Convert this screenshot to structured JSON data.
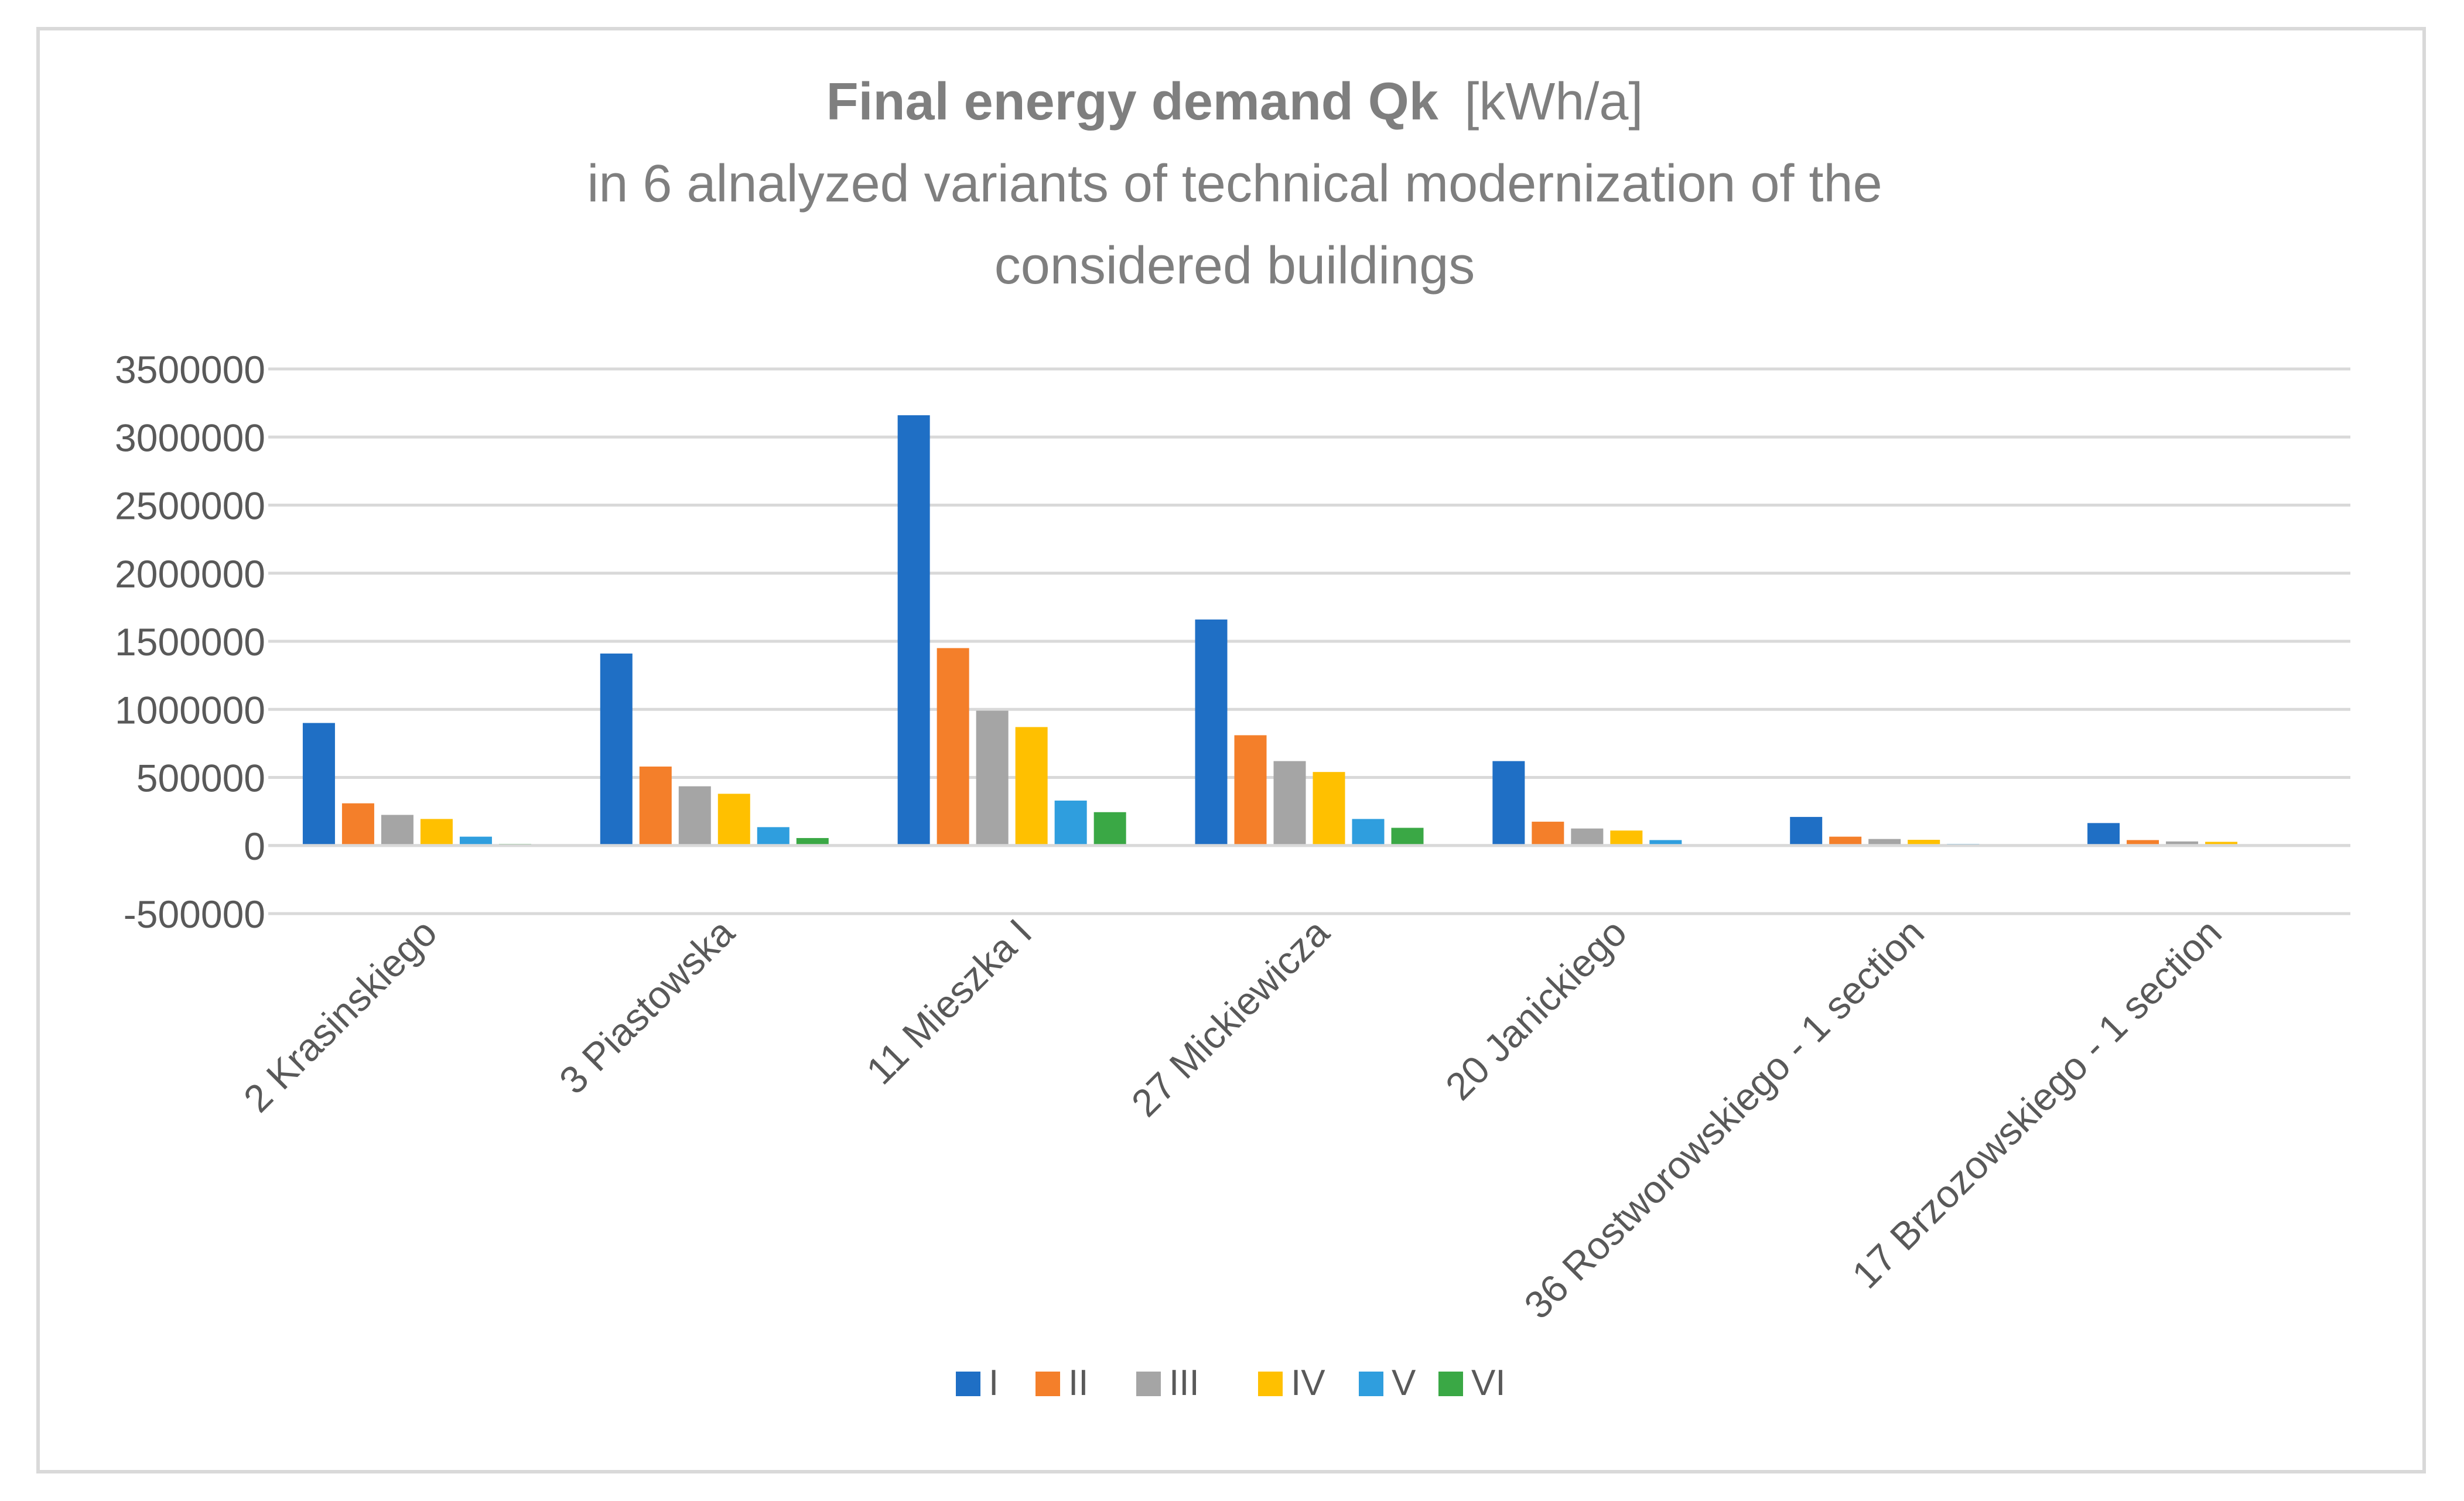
{
  "chart_data": {
    "type": "bar",
    "title_bold": "Final energy demand Qk",
    "title_unit": "[kWh/a]",
    "subtitle_lines": [
      "in 6 alnalyzed variants of technical modernization of the",
      "considered buildings"
    ],
    "categories": [
      "2 Krasinskiego",
      "3 Piastowska",
      "11 Mieszka I",
      "27 Mickiewicza",
      "20 Janickiego",
      "36 Rostworowskiego - 1 section",
      "17 Brzozowskiego - 1 section"
    ],
    "series": [
      {
        "name": "I",
        "color": "#1f6fc5",
        "values": [
          900000,
          1410000,
          3160000,
          1660000,
          620000,
          210000,
          165000
        ]
      },
      {
        "name": "II",
        "color": "#f47f2a",
        "values": [
          310000,
          580000,
          1450000,
          810000,
          175000,
          65000,
          40000
        ]
      },
      {
        "name": "III",
        "color": "#a5a5a5",
        "values": [
          225000,
          435000,
          990000,
          620000,
          125000,
          48000,
          30000
        ]
      },
      {
        "name": "IV",
        "color": "#ffc000",
        "values": [
          195000,
          380000,
          870000,
          540000,
          110000,
          42000,
          27000
        ]
      },
      {
        "name": "V",
        "color": "#2f9ede",
        "values": [
          65000,
          135000,
          330000,
          195000,
          40000,
          12000,
          8000
        ]
      },
      {
        "name": "VI",
        "color": "#3aa845",
        "values": [
          12000,
          55000,
          245000,
          130000,
          5000,
          2000,
          1000
        ]
      }
    ],
    "yticks": [
      "3500000",
      "3000000",
      "2500000",
      "2000000",
      "1500000",
      "1000000",
      "500000",
      "0",
      "-500000"
    ],
    "ylim": [
      -500000,
      3500000
    ],
    "grid": true,
    "legend_position": "bottom-center",
    "xlabel": "",
    "ylabel": ""
  }
}
